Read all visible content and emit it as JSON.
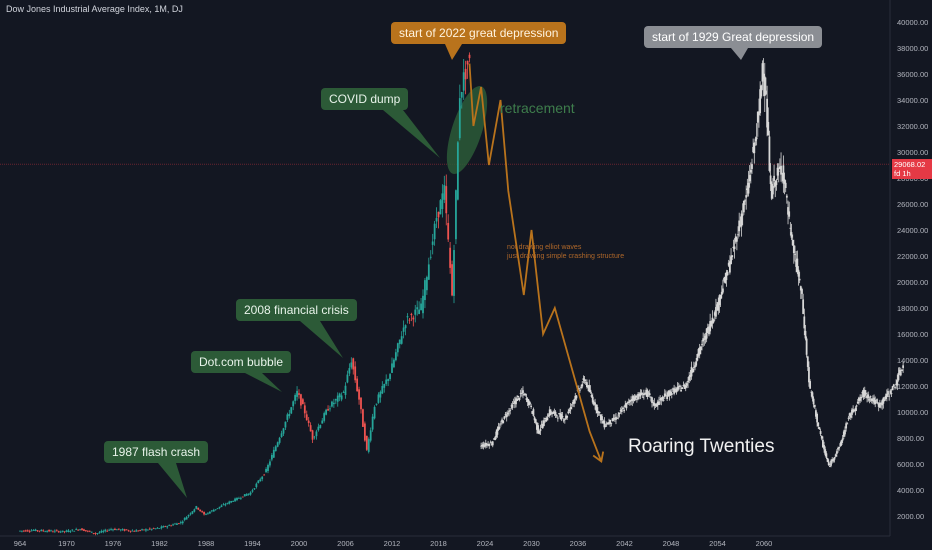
{
  "header": {
    "title": "Dow Jones Industrial Average Index, 1M, DJ"
  },
  "chart_data": {
    "type": "line",
    "title": "Dow Jones Industrial Average Index, 1M, DJ",
    "xlabel": "",
    "ylabel": "",
    "x_ticks": [
      "964",
      "1970",
      "1976",
      "1982",
      "1988",
      "1994",
      "2000",
      "2006",
      "2012",
      "2018",
      "2024",
      "2030",
      "2036",
      "2042",
      "2048",
      "2054",
      "2060"
    ],
    "y_ticks": [
      "2000.00",
      "4000.00",
      "6000.00",
      "8000.00",
      "10000.00",
      "12000.00",
      "14000.00",
      "16000.00",
      "18000.00",
      "20000.00",
      "22000.00",
      "24000.00",
      "26000.00",
      "28000.00",
      "30000.00",
      "32000.00",
      "34000.00",
      "36000.00",
      "38000.00",
      "40000.00"
    ],
    "ylim": [
      800,
      41000
    ],
    "grid": false,
    "current_price": {
      "value": "29068.02",
      "countdown": "fd 1h",
      "color": "#e53945"
    },
    "series": [
      {
        "color": "#26a69a",
        "points": [
          [
            1964,
            850
          ],
          [
            1966,
            900
          ],
          [
            1970,
            800
          ],
          [
            1972,
            1000
          ],
          [
            1974,
            650
          ],
          [
            1976,
            1000
          ],
          [
            1979,
            850
          ],
          [
            1982,
            1050
          ],
          [
            1985,
            1500
          ],
          [
            1987,
            2700
          ],
          [
            1988,
            2100
          ],
          [
            1991,
            3000
          ],
          [
            1994,
            3800
          ],
          [
            1996,
            5500
          ],
          [
            1998,
            8500
          ],
          [
            2000,
            11500
          ],
          [
            2001,
            10000
          ],
          [
            2002,
            8000
          ],
          [
            2004,
            10300
          ],
          [
            2006,
            11500
          ],
          [
            2007,
            14000
          ],
          [
            2008,
            11000
          ],
          [
            2009,
            7000
          ],
          [
            2010,
            10500
          ],
          [
            2012,
            13000
          ],
          [
            2014,
            17000
          ],
          [
            2016,
            18000
          ],
          [
            2018,
            25000
          ],
          [
            2019,
            27000
          ],
          [
            2020,
            19000
          ],
          [
            2021,
            34500
          ],
          [
            2022,
            36800
          ]
        ]
      },
      {
        "color": "#d7d7d7",
        "points": [
          [
            2023.5,
            7400
          ],
          [
            2025,
            7600
          ],
          [
            2026.5,
            9500
          ],
          [
            2028,
            10800
          ],
          [
            2029,
            11500
          ],
          [
            2030,
            10500
          ],
          [
            2031,
            8500
          ],
          [
            2032.5,
            10000
          ],
          [
            2034.5,
            9500
          ],
          [
            2036,
            11500
          ],
          [
            2037,
            12500
          ],
          [
            2038,
            11000
          ],
          [
            2039.5,
            9000
          ],
          [
            2041,
            9500
          ],
          [
            2043,
            11000
          ],
          [
            2045,
            11500
          ],
          [
            2046,
            10500
          ],
          [
            2048,
            11500
          ],
          [
            2050,
            12000
          ],
          [
            2052,
            15000
          ],
          [
            2054,
            18000
          ],
          [
            2056,
            22000
          ],
          [
            2058,
            27000
          ],
          [
            2059.5,
            33000
          ],
          [
            2060,
            37200
          ],
          [
            2060.5,
            33000
          ],
          [
            2061,
            27000
          ],
          [
            2062.5,
            29000
          ],
          [
            2063.5,
            24000
          ],
          [
            2065,
            19000
          ],
          [
            2066,
            12000
          ],
          [
            2067.5,
            8000
          ],
          [
            2068.5,
            5800
          ],
          [
            2070,
            7500
          ],
          [
            2071,
            9500
          ],
          [
            2073,
            11500
          ],
          [
            2075,
            10500
          ],
          [
            2077,
            12000
          ],
          [
            2078,
            13500
          ]
        ]
      }
    ],
    "projection": {
      "color": "#b9731c",
      "points": [
        [
          2022,
          36800
        ],
        [
          2022.5,
          32000
        ],
        [
          2023.5,
          35000
        ],
        [
          2024.5,
          29000
        ],
        [
          2026,
          34000
        ],
        [
          2027,
          27000
        ],
        [
          2029,
          19000
        ],
        [
          2030,
          24000
        ],
        [
          2031.5,
          16000
        ],
        [
          2033,
          18000
        ],
        [
          2037.5,
          8500
        ],
        [
          2039,
          6200
        ]
      ]
    },
    "annotations": [
      {
        "label": "start of 2022 great depression",
        "style": "orange"
      },
      {
        "label": "start of 1929 Great depression",
        "style": "grey"
      },
      {
        "label": "COVID dump",
        "style": "green"
      },
      {
        "label": "2008 financial crisis",
        "style": "green"
      },
      {
        "label": "Dot.com bubble",
        "style": "green"
      },
      {
        "label": "1987 flash crash",
        "style": "green"
      },
      {
        "label": "retracement",
        "style": "text"
      },
      {
        "label": "Roaring Twenties",
        "style": "text"
      }
    ],
    "notes": [
      "not drawing elliot waves",
      "just drawing simple crashing structure"
    ]
  }
}
